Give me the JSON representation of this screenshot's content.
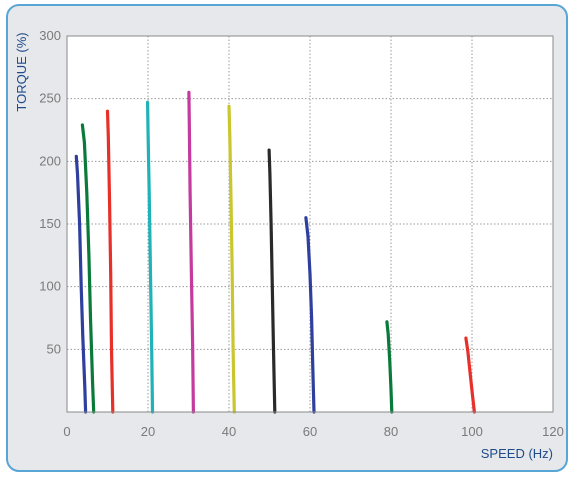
{
  "chart_data": {
    "type": "line",
    "title": "",
    "xlabel": "SPEED (Hz)",
    "ylabel": "TORQUE (%)",
    "xlim": [
      0,
      120
    ],
    "ylim": [
      0,
      300
    ],
    "x_ticks": [
      0,
      20,
      40,
      60,
      80,
      100,
      120
    ],
    "y_ticks": [
      50,
      100,
      150,
      200,
      250,
      300
    ],
    "grid": true,
    "grid_style": "dotted",
    "legend": "none",
    "series": [
      {
        "color": "#2e3f9e",
        "x": [
          2.3,
          2.6,
          3.1,
          3.5,
          3.9,
          4.4,
          4.6
        ],
        "y": [
          204,
          190,
          150,
          100,
          60,
          20,
          0
        ]
      },
      {
        "color": "#0a7a3a",
        "x": [
          3.8,
          4.3,
          4.9,
          5.4,
          5.8,
          6.3,
          6.6
        ],
        "y": [
          229,
          215,
          175,
          125,
          75,
          25,
          0
        ]
      },
      {
        "color": "#e8302a",
        "x": [
          10.0,
          10.2,
          10.5,
          10.8,
          11.0,
          11.3
        ],
        "y": [
          240,
          220,
          170,
          110,
          50,
          0
        ]
      },
      {
        "color": "#1fb3b8",
        "x": [
          19.9,
          20.0,
          20.3,
          20.6,
          20.9,
          21.1
        ],
        "y": [
          247,
          225,
          175,
          115,
          55,
          0
        ]
      },
      {
        "color": "#c43a9e",
        "x": [
          30.1,
          30.2,
          30.4,
          30.7,
          31.0,
          31.2
        ],
        "y": [
          255,
          230,
          175,
          115,
          55,
          0
        ]
      },
      {
        "color": "#c9c62e",
        "x": [
          40.0,
          40.2,
          40.5,
          40.8,
          41.0,
          41.3
        ],
        "y": [
          244,
          220,
          170,
          110,
          50,
          0
        ]
      },
      {
        "color": "#2a2a2a",
        "x": [
          49.9,
          50.1,
          50.4,
          50.7,
          51.0,
          51.3
        ],
        "y": [
          209,
          190,
          150,
          100,
          50,
          0
        ]
      },
      {
        "color": "#2e3f9e",
        "x": [
          59.0,
          59.5,
          60.0,
          60.4,
          60.7,
          61.0
        ],
        "y": [
          155,
          140,
          110,
          75,
          35,
          0
        ]
      },
      {
        "color": "#0a7a3a",
        "x": [
          79.0,
          79.3,
          79.7,
          80.0,
          80.2
        ],
        "y": [
          72,
          62,
          40,
          18,
          0
        ]
      },
      {
        "color": "#e8302a",
        "x": [
          98.5,
          99.0,
          99.5,
          100.1,
          100.6
        ],
        "y": [
          59,
          48,
          32,
          14,
          0
        ]
      }
    ]
  }
}
